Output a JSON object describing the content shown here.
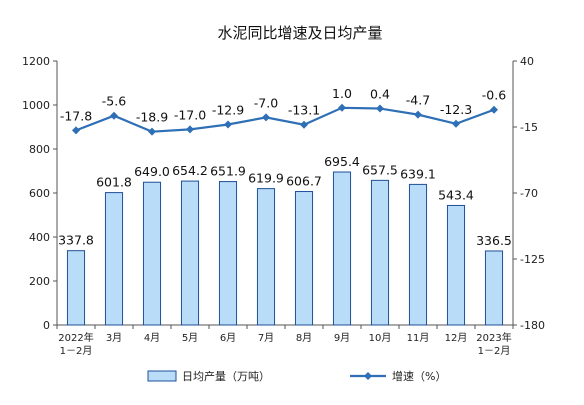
{
  "chart_data": {
    "type": "bar+line",
    "title": "水泥同比增速及日均产量",
    "categories": [
      [
        "2022年",
        "1－2月"
      ],
      [
        "3月"
      ],
      [
        "4月"
      ],
      [
        "5月"
      ],
      [
        "6月"
      ],
      [
        "7月"
      ],
      [
        "8月"
      ],
      [
        "9月"
      ],
      [
        "10月"
      ],
      [
        "11月"
      ],
      [
        "12月"
      ],
      [
        "2023年",
        "1－2月"
      ]
    ],
    "series": [
      {
        "name": "日均产量（万吨）",
        "type": "bar",
        "axis": "left",
        "color": "#b9dcf8",
        "edge_color": "#1f4f96",
        "values": [
          337.8,
          601.8,
          649.0,
          654.2,
          651.9,
          619.9,
          606.7,
          695.4,
          657.5,
          639.1,
          543.4,
          336.5
        ],
        "labels": [
          "337.8",
          "601.8",
          "649.0",
          "654.2",
          "651.9",
          "619.9",
          "606.7",
          "695.4",
          "657.5",
          "639.1",
          "543.4",
          "336.5"
        ]
      },
      {
        "name": "增速（%）",
        "type": "line",
        "axis": "right",
        "color": "#2e6fb5",
        "values": [
          -17.8,
          -5.6,
          -18.9,
          -17.0,
          -12.9,
          -7.0,
          -13.1,
          1.0,
          0.4,
          -4.7,
          -12.3,
          -0.6
        ],
        "labels": [
          "-17.8",
          "-5.6",
          "-18.9",
          "-17.0",
          "-12.9",
          "-7.0",
          "-13.1",
          "1.0",
          "0.4",
          "-4.7",
          "-12.3",
          "-0.6"
        ]
      }
    ],
    "left_axis": {
      "min": 0,
      "max": 1200,
      "ticks": [
        0,
        200,
        400,
        600,
        800,
        1000,
        1200
      ]
    },
    "right_axis": {
      "min": -180,
      "max": 40,
      "ticks": [
        -180,
        -125,
        -70,
        -15,
        40
      ]
    },
    "grid": false,
    "legend_position": "bottom"
  }
}
